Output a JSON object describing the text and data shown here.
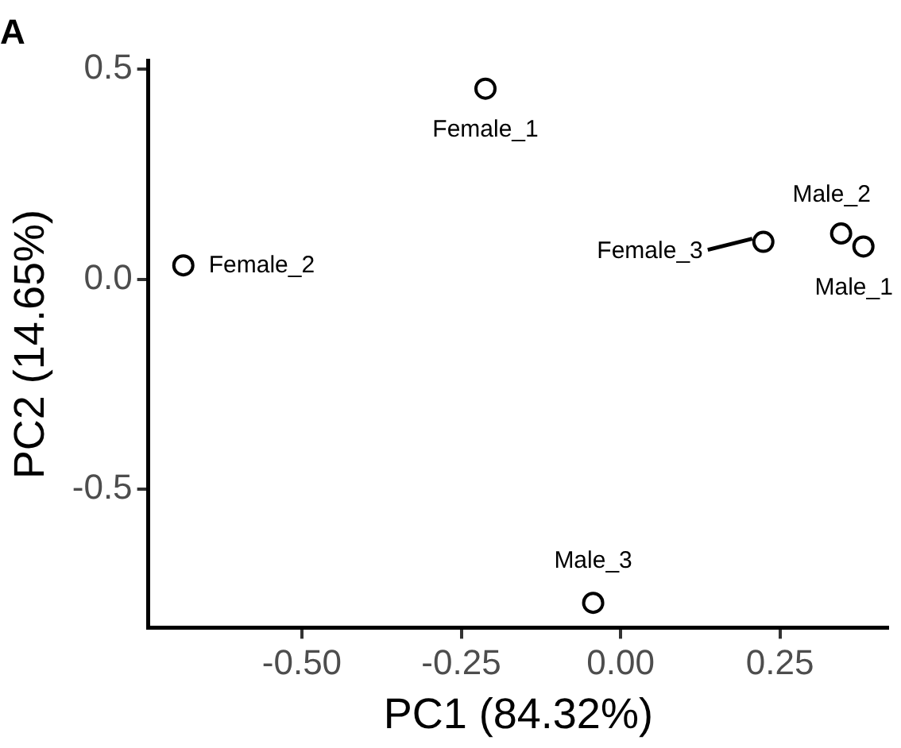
{
  "chart_data": {
    "type": "scatter",
    "title": "A",
    "xlabel": "PC1 (84.32%)",
    "ylabel": "PC2 (14.65%)",
    "x": [
      -0.212,
      -0.686,
      0.224,
      0.346,
      0.381,
      -0.043
    ],
    "series": [
      {
        "color": "#000000",
        "values": [
          0.454,
          0.033,
          0.089,
          0.109,
          0.078,
          -0.771
        ]
      }
    ],
    "annotations": [
      {
        "text": "Female_1",
        "x": -0.212,
        "y": 0.454
      },
      {
        "text": "Female_2",
        "x": -0.686,
        "y": 0.033
      },
      {
        "text": "Female_3",
        "x": 0.224,
        "y": 0.089
      },
      {
        "text": "Male_2",
        "x": 0.346,
        "y": 0.109
      },
      {
        "text": "Male_1",
        "x": 0.381,
        "y": 0.078
      },
      {
        "text": "Male_3",
        "x": -0.043,
        "y": -0.771
      }
    ],
    "xlim": [
      -0.741,
      0.42
    ],
    "ylim": [
      -0.83,
      0.52
    ],
    "xticks": [
      {
        "value": -0.5,
        "label": "-0.50"
      },
      {
        "value": -0.25,
        "label": "-0.25"
      },
      {
        "value": 0,
        "label": "0.00"
      },
      {
        "value": 0.25,
        "label": "0.25"
      }
    ],
    "yticks": [
      {
        "value": -0.5,
        "label": "-0.5"
      },
      {
        "value": 0,
        "label": "0.0"
      },
      {
        "value": 0.5,
        "label": "0.5"
      }
    ],
    "grid": false,
    "legend": false,
    "marker": "circle"
  }
}
